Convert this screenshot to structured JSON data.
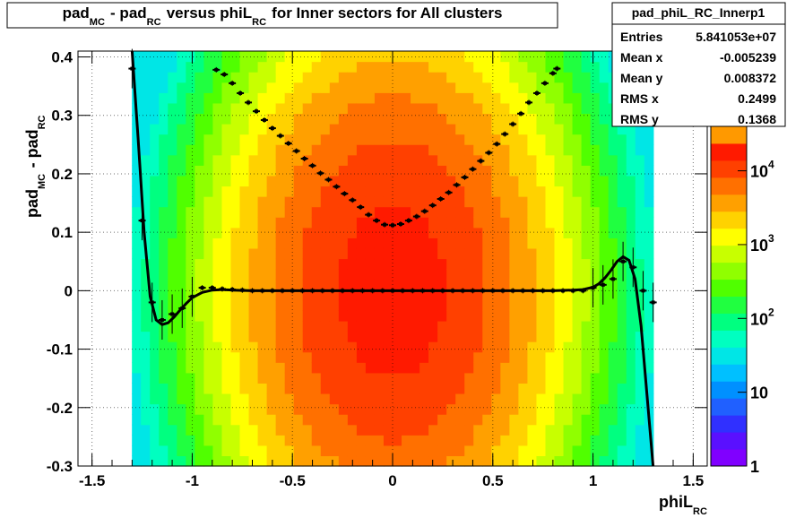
{
  "chart_data": {
    "type": "heatmap",
    "title": {
      "parts": [
        {
          "text": "pad",
          "sub": "MC"
        },
        {
          "text": " - pad",
          "sub": "RC"
        },
        {
          "text": " versus phiL",
          "sub": "RC"
        },
        {
          "text": " for Inner sectors for All clusters",
          "sub": ""
        }
      ]
    },
    "xlabel": {
      "text": "phiL",
      "sub": "RC"
    },
    "ylabel": {
      "parts": [
        {
          "text": "pad",
          "sub": "MC"
        },
        {
          "text": " - pad",
          "sub": "RC"
        }
      ]
    },
    "xlim": [
      -1.57,
      1.57
    ],
    "ylim": [
      -0.3,
      0.41
    ],
    "xticks": [
      {
        "v": -1.5,
        "label": "-1.5"
      },
      {
        "v": -1,
        "label": "-1"
      },
      {
        "v": -0.5,
        "label": "-0.5"
      },
      {
        "v": 0,
        "label": "0"
      },
      {
        "v": 0.5,
        "label": "0.5"
      },
      {
        "v": 1,
        "label": "1"
      },
      {
        "v": 1.5,
        "label": "1.5"
      }
    ],
    "yticks": [
      {
        "v": -0.3,
        "label": "-0.3"
      },
      {
        "v": -0.2,
        "label": "-0.2"
      },
      {
        "v": -0.1,
        "label": "-0.1"
      },
      {
        "v": 0,
        "label": "0"
      },
      {
        "v": 0.1,
        "label": "0.1"
      },
      {
        "v": 0.2,
        "label": "0.2"
      },
      {
        "v": 0.3,
        "label": "0.3"
      },
      {
        "v": 0.4,
        "label": "0.4"
      }
    ],
    "grid": true,
    "colorbar": {
      "scale": "log",
      "range": [
        1,
        40000
      ],
      "ticks": [
        {
          "v": 1,
          "base": "1",
          "exp": ""
        },
        {
          "v": 10,
          "base": "10",
          "exp": ""
        },
        {
          "v": 100,
          "base": "10",
          "exp": "2"
        },
        {
          "v": 1000,
          "base": "10",
          "exp": "3"
        },
        {
          "v": 10000,
          "base": "10",
          "exp": "4"
        }
      ],
      "palette": [
        "#8000ff",
        "#5a10ff",
        "#3030ff",
        "#2060ff",
        "#0090ff",
        "#00c0ff",
        "#00e6e6",
        "#00ffc0",
        "#00ff80",
        "#20ff40",
        "#50ff00",
        "#90ff00",
        "#c8ff00",
        "#ffff00",
        "#ffd200",
        "#ffa000",
        "#ff7000",
        "#ff4000",
        "#ff1a00",
        "#ff9900"
      ]
    },
    "density_model": {
      "description": "2D histogram of cluster counts",
      "peak_counts": 30000,
      "x_sigma": 0.36,
      "y_sigma": 0.2,
      "x_edge": 1.3,
      "bins_x": 70,
      "bins_y": 40
    },
    "series": [
      {
        "type": "profile_markers",
        "x": [
          -1.3,
          -1.25,
          -1.2,
          -1.15,
          -1.1,
          -1.05,
          -1.0,
          -0.95,
          -0.9,
          -0.85,
          -0.8,
          -0.75,
          -0.7,
          -0.65,
          -0.6,
          -0.55,
          -0.5,
          -0.45,
          -0.4,
          -0.35,
          -0.3,
          -0.25,
          -0.2,
          -0.15,
          -0.1,
          -0.05,
          0.0,
          0.05,
          0.1,
          0.15,
          0.2,
          0.25,
          0.3,
          0.35,
          0.4,
          0.45,
          0.5,
          0.55,
          0.6,
          0.65,
          0.7,
          0.75,
          0.8,
          0.85,
          0.9,
          0.95,
          1.0,
          1.05,
          1.1,
          1.15,
          1.2,
          1.25,
          1.3
        ],
        "y": [
          0.38,
          0.12,
          -0.02,
          -0.05,
          -0.04,
          -0.03,
          -0.01,
          0.005,
          0.005,
          0.003,
          0.002,
          0.001,
          0.0,
          0.0,
          0.0,
          0.0,
          0.0,
          0.0,
          0.0,
          0.0,
          0.0,
          0.0,
          0.0,
          0.0,
          0.0,
          0.0,
          0.0,
          0.0,
          0.0,
          0.0,
          0.0,
          0.0,
          0.0,
          0.0,
          0.0,
          0.0,
          0.0,
          0.0,
          0.0,
          0.0,
          0.0,
          0.0,
          0.0,
          0.0,
          0.0,
          0.0,
          0.005,
          0.01,
          0.02,
          0.05,
          0.04,
          0.0,
          -0.02
        ]
      },
      {
        "type": "parabola_markers",
        "x": [
          -0.88,
          -0.84,
          -0.8,
          -0.76,
          -0.72,
          -0.68,
          -0.64,
          -0.6,
          -0.56,
          -0.52,
          -0.48,
          -0.44,
          -0.4,
          -0.36,
          -0.32,
          -0.28,
          -0.24,
          -0.2,
          -0.16,
          -0.12,
          -0.08,
          -0.04,
          0.0,
          0.04,
          0.08,
          0.12,
          0.16,
          0.2,
          0.24,
          0.28,
          0.32,
          0.36,
          0.4,
          0.44,
          0.48,
          0.52,
          0.56,
          0.6,
          0.64,
          0.68,
          0.72,
          0.76,
          0.8,
          0.82
        ],
        "y": [
          0.378,
          0.37,
          0.355,
          0.338,
          0.322,
          0.307,
          0.292,
          0.278,
          0.265,
          0.252,
          0.239,
          0.226,
          0.214,
          0.201,
          0.19,
          0.178,
          0.166,
          0.155,
          0.143,
          0.13,
          0.12,
          0.113,
          0.112,
          0.114,
          0.12,
          0.127,
          0.136,
          0.146,
          0.157,
          0.168,
          0.181,
          0.194,
          0.208,
          0.222,
          0.236,
          0.251,
          0.268,
          0.285,
          0.303,
          0.322,
          0.338,
          0.355,
          0.372,
          0.38
        ]
      },
      {
        "type": "fit_curve",
        "x": [
          -1.3,
          -1.27,
          -1.24,
          -1.21,
          -1.18,
          -1.15,
          -1.12,
          -1.09,
          -1.06,
          -1.03,
          -1.0,
          -0.95,
          -0.9,
          -0.85,
          -0.8,
          -0.7,
          -0.6,
          -0.4,
          -0.2,
          0.0,
          0.2,
          0.4,
          0.6,
          0.7,
          0.8,
          0.9,
          0.95,
          1.0,
          1.03,
          1.06,
          1.09,
          1.12,
          1.15,
          1.18,
          1.21,
          1.24,
          1.27,
          1.3
        ],
        "y": [
          0.41,
          0.26,
          0.1,
          -0.01,
          -0.05,
          -0.058,
          -0.055,
          -0.045,
          -0.033,
          -0.022,
          -0.012,
          -0.003,
          0.001,
          0.002,
          0.001,
          0.0,
          0.0,
          0.0,
          0.0,
          0.0,
          0.0,
          0.0,
          0.0,
          0.0,
          0.0,
          0.001,
          0.002,
          0.006,
          0.012,
          0.022,
          0.035,
          0.05,
          0.058,
          0.052,
          0.02,
          -0.06,
          -0.18,
          -0.3
        ]
      }
    ],
    "stats": {
      "name": "pad_phiL_RC_Innerp1",
      "rows": [
        {
          "label": "Entries",
          "value": "5.841053e+07"
        },
        {
          "label": "Mean x",
          "value": "-0.005239"
        },
        {
          "label": "Mean y",
          "value": "0.008372"
        },
        {
          "label": "RMS x",
          "value": "0.2499"
        },
        {
          "label": "RMS y",
          "value": "0.1368"
        }
      ]
    }
  }
}
